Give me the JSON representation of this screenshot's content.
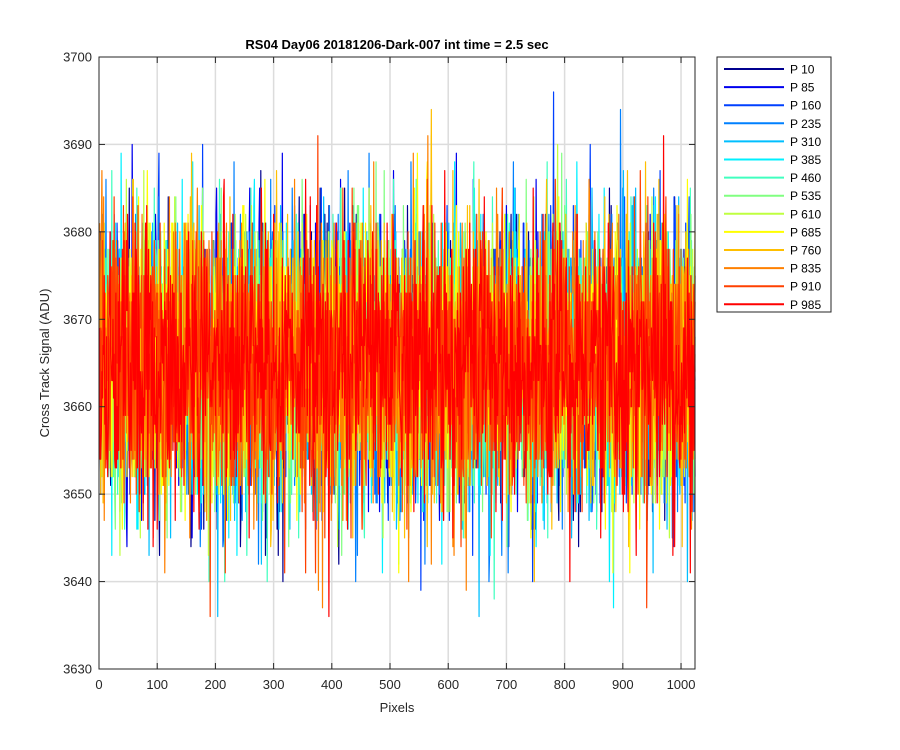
{
  "chart_data": {
    "type": "line",
    "title": "RS04 Day06 20181206-Dark-007 int time = 2.5 sec",
    "xlabel": "Pixels",
    "ylabel": "Cross Track Signal (ADU)",
    "xlim": [
      0,
      1024
    ],
    "ylim": [
      3630,
      3700
    ],
    "xticks": [
      "0",
      "100",
      "200",
      "300",
      "400",
      "500",
      "600",
      "700",
      "800",
      "900",
      "1000"
    ],
    "yticks": [
      "3630",
      "3640",
      "3650",
      "3660",
      "3670",
      "3680",
      "3690",
      "3700"
    ],
    "grid": true,
    "legend_position": "outside-top-right",
    "noise": {
      "mean": 3665,
      "sd": 8.0,
      "points_per_series": 1024
    },
    "series": [
      {
        "name": "P 10",
        "color": "#00008f"
      },
      {
        "name": "P 85",
        "color": "#0000ee"
      },
      {
        "name": "P 160",
        "color": "#0040ff"
      },
      {
        "name": "P 235",
        "color": "#0080ff"
      },
      {
        "name": "P 310",
        "color": "#00bfff"
      },
      {
        "name": "P 385",
        "color": "#00f0ff"
      },
      {
        "name": "P 460",
        "color": "#40ffbf"
      },
      {
        "name": "P 535",
        "color": "#80ff80"
      },
      {
        "name": "P 610",
        "color": "#bfff40"
      },
      {
        "name": "P 685",
        "color": "#ffff00"
      },
      {
        "name": "P 760",
        "color": "#ffbf00"
      },
      {
        "name": "P 835",
        "color": "#ff8000"
      },
      {
        "name": "P 910",
        "color": "#ff4000"
      },
      {
        "name": "P 985",
        "color": "#ff0000"
      }
    ]
  }
}
